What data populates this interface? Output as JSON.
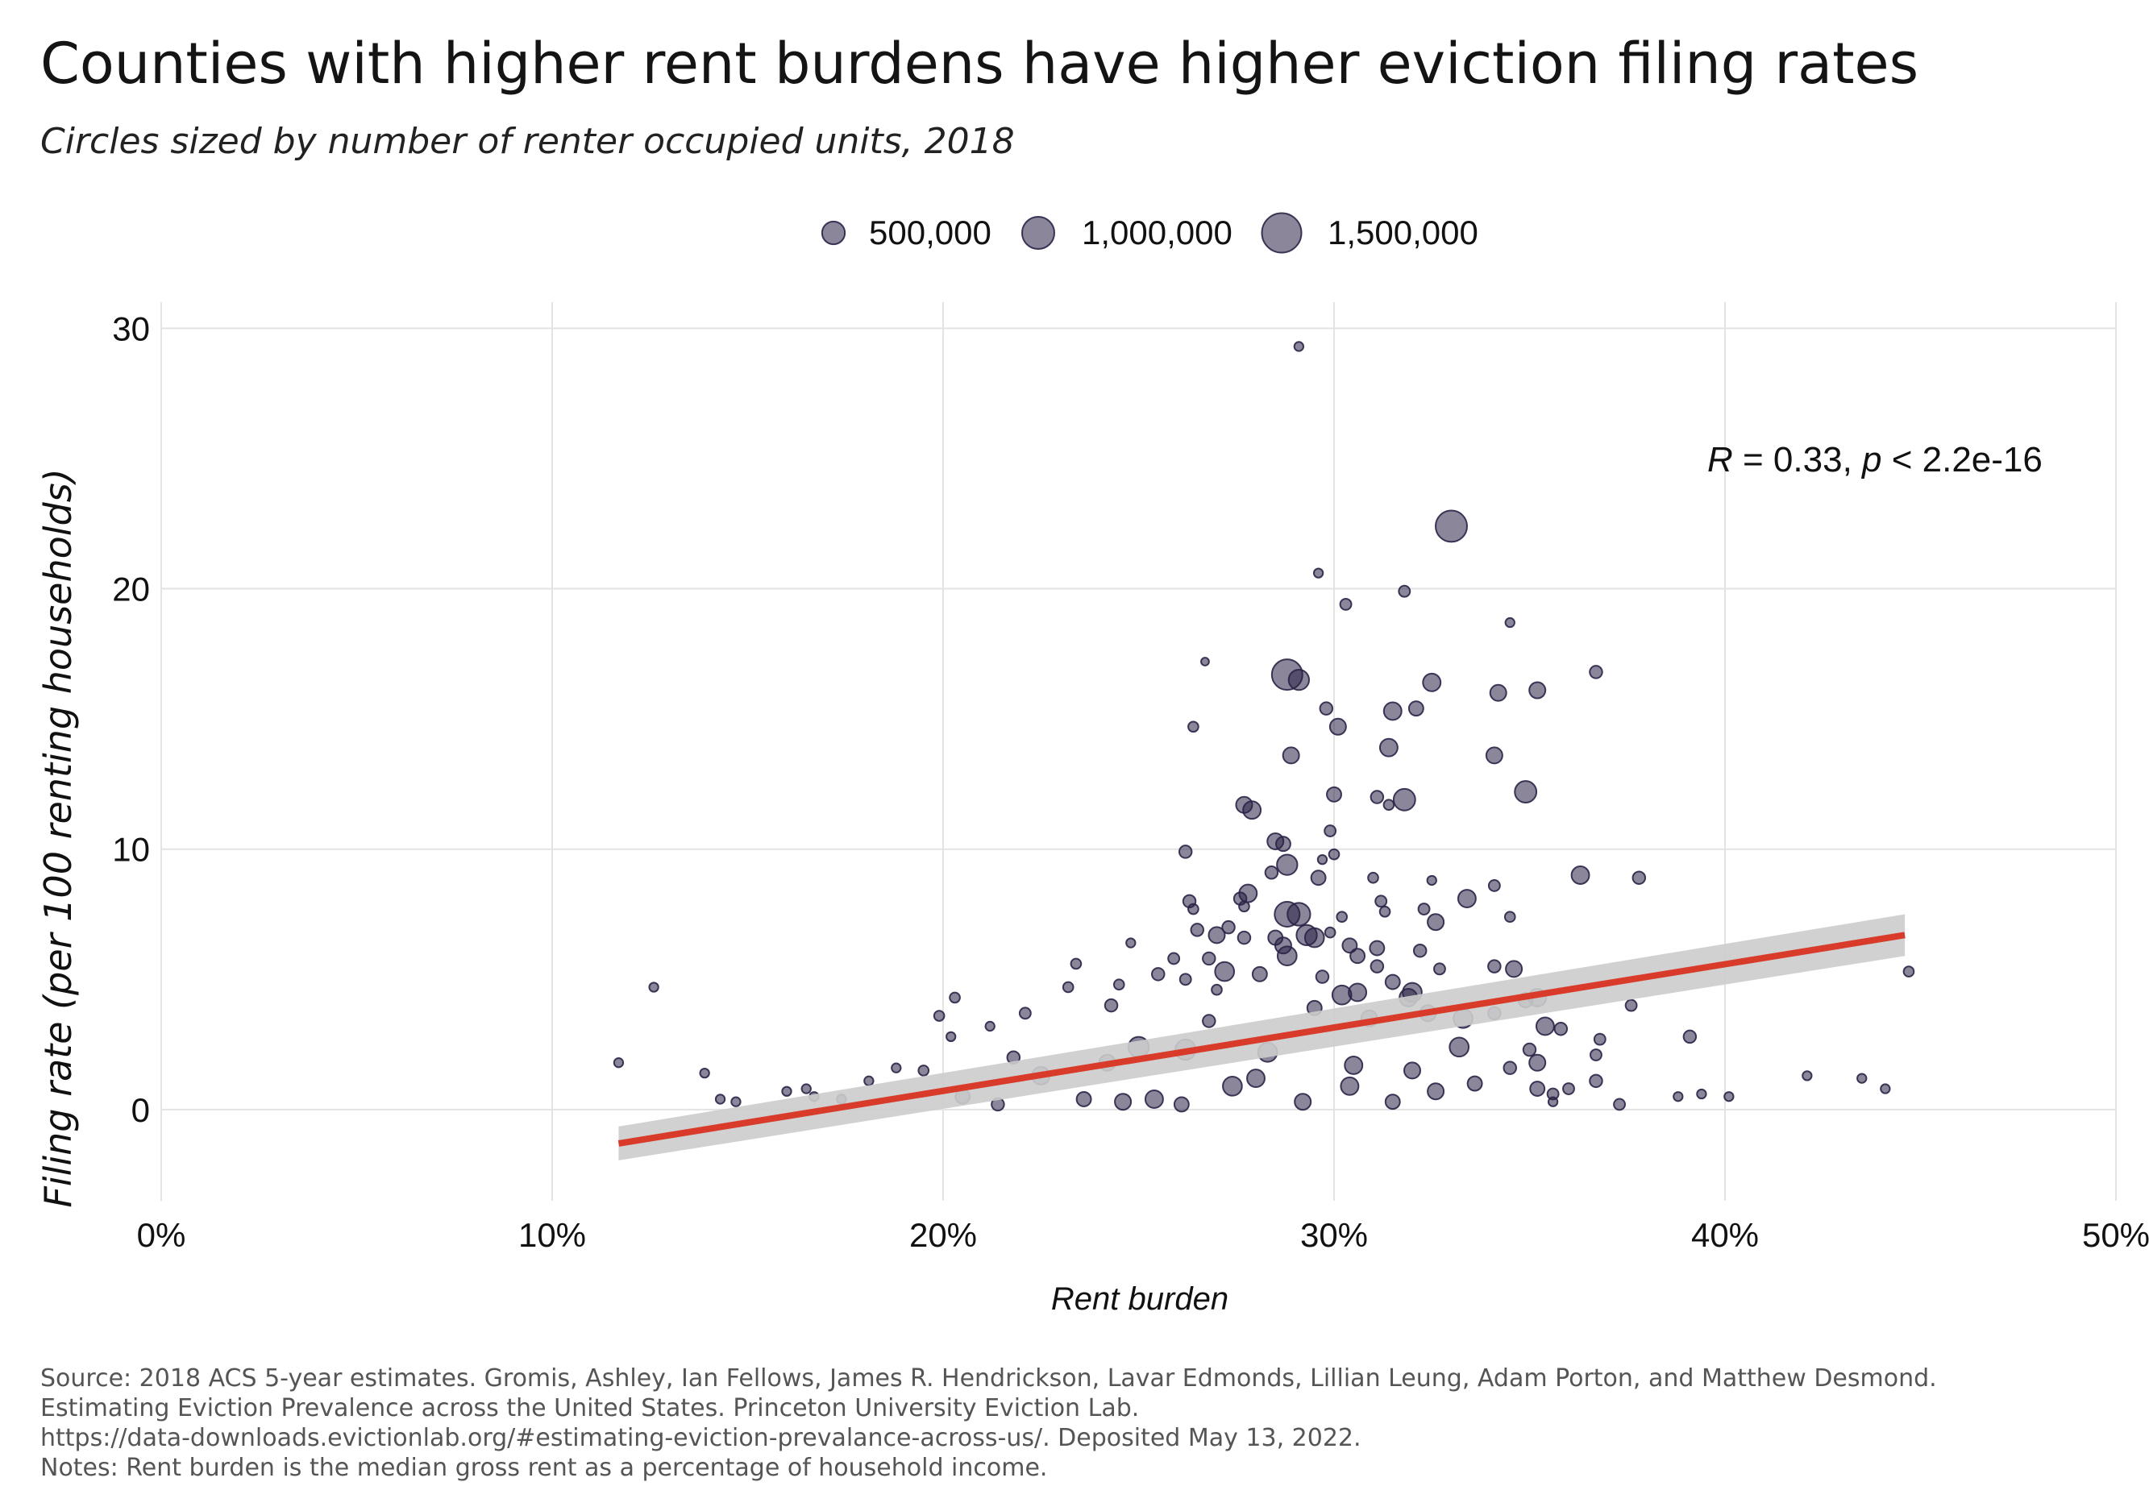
{
  "chart_data": {
    "type": "scatter",
    "title": "Counties with higher rent burdens have higher eviction filing rates",
    "subtitle": "Circles sized by number of renter occupied units, 2018",
    "xlabel": "Rent burden",
    "ylabel": "Filing rate (per 100 renting households)",
    "xlim": [
      0,
      0.5
    ],
    "ylim": [
      -3.5,
      31
    ],
    "xticks": [
      0,
      0.1,
      0.2,
      0.3,
      0.4,
      0.5
    ],
    "xtick_labels": [
      "0%",
      "10%",
      "20%",
      "30%",
      "40%",
      "50%"
    ],
    "yticks": [
      0,
      10,
      20,
      30
    ],
    "ytick_labels": [
      "0",
      "10",
      "20",
      "30"
    ],
    "grid": true,
    "legend": {
      "position": "top",
      "entries": [
        {
          "label": "500,000",
          "size": 500000
        },
        {
          "label": "1,000,000",
          "size": 1000000
        },
        {
          "label": "1,500,000",
          "size": 1500000
        }
      ]
    },
    "annotation": {
      "r_label": "R",
      "r_value": " = 0.33, ",
      "p_label": "p",
      "p_value": " < 2.2e-16"
    },
    "regression": {
      "x": [
        0.117,
        0.446
      ],
      "y": [
        -1.3,
        6.7
      ],
      "ci_halfwidth": [
        0.65,
        0.8
      ]
    },
    "colors": {
      "points": "#2b2347",
      "regression": "#d93b2b",
      "ci": "#cccccc",
      "grid": "#e3e3e3"
    },
    "points": [
      {
        "x": 0.291,
        "y": 29.3,
        "size": 80000
      },
      {
        "x": 0.33,
        "y": 22.4,
        "size": 950000
      },
      {
        "x": 0.296,
        "y": 20.6,
        "size": 80000
      },
      {
        "x": 0.318,
        "y": 19.9,
        "size": 120000
      },
      {
        "x": 0.303,
        "y": 19.4,
        "size": 120000
      },
      {
        "x": 0.345,
        "y": 18.7,
        "size": 80000
      },
      {
        "x": 0.267,
        "y": 17.2,
        "size": 60000
      },
      {
        "x": 0.288,
        "y": 16.7,
        "size": 900000
      },
      {
        "x": 0.291,
        "y": 16.5,
        "size": 400000
      },
      {
        "x": 0.367,
        "y": 16.8,
        "size": 150000
      },
      {
        "x": 0.325,
        "y": 16.4,
        "size": 300000
      },
      {
        "x": 0.342,
        "y": 16.0,
        "size": 250000
      },
      {
        "x": 0.352,
        "y": 16.1,
        "size": 250000
      },
      {
        "x": 0.298,
        "y": 15.4,
        "size": 150000
      },
      {
        "x": 0.315,
        "y": 15.3,
        "size": 300000
      },
      {
        "x": 0.321,
        "y": 15.4,
        "size": 200000
      },
      {
        "x": 0.301,
        "y": 14.7,
        "size": 250000
      },
      {
        "x": 0.264,
        "y": 14.7,
        "size": 100000
      },
      {
        "x": 0.314,
        "y": 13.9,
        "size": 300000
      },
      {
        "x": 0.289,
        "y": 13.6,
        "size": 250000
      },
      {
        "x": 0.341,
        "y": 13.6,
        "size": 250000
      },
      {
        "x": 0.349,
        "y": 12.2,
        "size": 450000
      },
      {
        "x": 0.3,
        "y": 12.1,
        "size": 200000
      },
      {
        "x": 0.311,
        "y": 12.0,
        "size": 150000
      },
      {
        "x": 0.318,
        "y": 11.9,
        "size": 450000
      },
      {
        "x": 0.314,
        "y": 11.7,
        "size": 100000
      },
      {
        "x": 0.277,
        "y": 11.7,
        "size": 250000
      },
      {
        "x": 0.279,
        "y": 11.5,
        "size": 300000
      },
      {
        "x": 0.299,
        "y": 10.7,
        "size": 120000
      },
      {
        "x": 0.285,
        "y": 10.3,
        "size": 250000
      },
      {
        "x": 0.287,
        "y": 10.2,
        "size": 200000
      },
      {
        "x": 0.3,
        "y": 9.8,
        "size": 100000
      },
      {
        "x": 0.262,
        "y": 9.9,
        "size": 150000
      },
      {
        "x": 0.297,
        "y": 9.6,
        "size": 80000
      },
      {
        "x": 0.288,
        "y": 9.4,
        "size": 400000
      },
      {
        "x": 0.284,
        "y": 9.1,
        "size": 150000
      },
      {
        "x": 0.296,
        "y": 8.9,
        "size": 200000
      },
      {
        "x": 0.363,
        "y": 9.0,
        "size": 300000
      },
      {
        "x": 0.378,
        "y": 8.9,
        "size": 150000
      },
      {
        "x": 0.31,
        "y": 8.9,
        "size": 100000
      },
      {
        "x": 0.325,
        "y": 8.8,
        "size": 80000
      },
      {
        "x": 0.341,
        "y": 8.6,
        "size": 120000
      },
      {
        "x": 0.278,
        "y": 8.3,
        "size": 300000
      },
      {
        "x": 0.276,
        "y": 8.1,
        "size": 150000
      },
      {
        "x": 0.334,
        "y": 8.1,
        "size": 300000
      },
      {
        "x": 0.263,
        "y": 8.0,
        "size": 150000
      },
      {
        "x": 0.312,
        "y": 8.0,
        "size": 120000
      },
      {
        "x": 0.288,
        "y": 7.5,
        "size": 600000
      },
      {
        "x": 0.291,
        "y": 7.5,
        "size": 500000
      },
      {
        "x": 0.277,
        "y": 7.8,
        "size": 100000
      },
      {
        "x": 0.264,
        "y": 7.7,
        "size": 100000
      },
      {
        "x": 0.323,
        "y": 7.7,
        "size": 120000
      },
      {
        "x": 0.313,
        "y": 7.6,
        "size": 100000
      },
      {
        "x": 0.302,
        "y": 7.4,
        "size": 100000
      },
      {
        "x": 0.345,
        "y": 7.4,
        "size": 100000
      },
      {
        "x": 0.273,
        "y": 7.0,
        "size": 150000
      },
      {
        "x": 0.326,
        "y": 7.2,
        "size": 250000
      },
      {
        "x": 0.265,
        "y": 6.9,
        "size": 150000
      },
      {
        "x": 0.293,
        "y": 6.7,
        "size": 400000
      },
      {
        "x": 0.295,
        "y": 6.6,
        "size": 350000
      },
      {
        "x": 0.285,
        "y": 6.6,
        "size": 200000
      },
      {
        "x": 0.299,
        "y": 6.8,
        "size": 100000
      },
      {
        "x": 0.27,
        "y": 6.7,
        "size": 250000
      },
      {
        "x": 0.277,
        "y": 6.6,
        "size": 150000
      },
      {
        "x": 0.248,
        "y": 6.4,
        "size": 80000
      },
      {
        "x": 0.287,
        "y": 6.3,
        "size": 250000
      },
      {
        "x": 0.304,
        "y": 6.3,
        "size": 200000
      },
      {
        "x": 0.311,
        "y": 6.2,
        "size": 200000
      },
      {
        "x": 0.322,
        "y": 6.1,
        "size": 150000
      },
      {
        "x": 0.288,
        "y": 5.9,
        "size": 350000
      },
      {
        "x": 0.306,
        "y": 5.9,
        "size": 200000
      },
      {
        "x": 0.268,
        "y": 5.8,
        "size": 150000
      },
      {
        "x": 0.259,
        "y": 5.8,
        "size": 120000
      },
      {
        "x": 0.234,
        "y": 5.6,
        "size": 100000
      },
      {
        "x": 0.311,
        "y": 5.5,
        "size": 150000
      },
      {
        "x": 0.327,
        "y": 5.4,
        "size": 120000
      },
      {
        "x": 0.341,
        "y": 5.5,
        "size": 150000
      },
      {
        "x": 0.346,
        "y": 5.4,
        "size": 250000
      },
      {
        "x": 0.447,
        "y": 5.3,
        "size": 100000
      },
      {
        "x": 0.272,
        "y": 5.3,
        "size": 350000
      },
      {
        "x": 0.281,
        "y": 5.2,
        "size": 200000
      },
      {
        "x": 0.255,
        "y": 5.2,
        "size": 150000
      },
      {
        "x": 0.262,
        "y": 5.0,
        "size": 120000
      },
      {
        "x": 0.297,
        "y": 5.1,
        "size": 150000
      },
      {
        "x": 0.315,
        "y": 4.9,
        "size": 200000
      },
      {
        "x": 0.245,
        "y": 4.8,
        "size": 100000
      },
      {
        "x": 0.232,
        "y": 4.7,
        "size": 100000
      },
      {
        "x": 0.126,
        "y": 4.7,
        "size": 80000
      },
      {
        "x": 0.27,
        "y": 4.6,
        "size": 100000
      },
      {
        "x": 0.306,
        "y": 4.5,
        "size": 300000
      },
      {
        "x": 0.302,
        "y": 4.4,
        "size": 350000
      },
      {
        "x": 0.32,
        "y": 4.5,
        "size": 350000
      },
      {
        "x": 0.319,
        "y": 4.3,
        "size": 300000
      },
      {
        "x": 0.352,
        "y": 4.3,
        "size": 300000
      },
      {
        "x": 0.349,
        "y": 4.2,
        "size": 200000
      },
      {
        "x": 0.203,
        "y": 4.3,
        "size": 100000
      },
      {
        "x": 0.243,
        "y": 4.0,
        "size": 150000
      },
      {
        "x": 0.376,
        "y": 4.0,
        "size": 120000
      },
      {
        "x": 0.295,
        "y": 3.9,
        "size": 200000
      },
      {
        "x": 0.324,
        "y": 3.7,
        "size": 250000
      },
      {
        "x": 0.221,
        "y": 3.7,
        "size": 120000
      },
      {
        "x": 0.199,
        "y": 3.6,
        "size": 100000
      },
      {
        "x": 0.341,
        "y": 3.7,
        "size": 150000
      },
      {
        "x": 0.333,
        "y": 3.5,
        "size": 350000
      },
      {
        "x": 0.309,
        "y": 3.5,
        "size": 250000
      },
      {
        "x": 0.268,
        "y": 3.4,
        "size": 150000
      },
      {
        "x": 0.212,
        "y": 3.2,
        "size": 80000
      },
      {
        "x": 0.354,
        "y": 3.2,
        "size": 300000
      },
      {
        "x": 0.358,
        "y": 3.1,
        "size": 150000
      },
      {
        "x": 0.391,
        "y": 2.8,
        "size": 150000
      },
      {
        "x": 0.202,
        "y": 2.8,
        "size": 80000
      },
      {
        "x": 0.368,
        "y": 2.7,
        "size": 120000
      },
      {
        "x": 0.25,
        "y": 2.4,
        "size": 400000
      },
      {
        "x": 0.262,
        "y": 2.3,
        "size": 400000
      },
      {
        "x": 0.283,
        "y": 2.2,
        "size": 350000
      },
      {
        "x": 0.332,
        "y": 2.4,
        "size": 350000
      },
      {
        "x": 0.35,
        "y": 2.3,
        "size": 150000
      },
      {
        "x": 0.367,
        "y": 2.1,
        "size": 120000
      },
      {
        "x": 0.218,
        "y": 2.0,
        "size": 150000
      },
      {
        "x": 0.242,
        "y": 1.8,
        "size": 250000
      },
      {
        "x": 0.188,
        "y": 1.6,
        "size": 80000
      },
      {
        "x": 0.117,
        "y": 1.8,
        "size": 80000
      },
      {
        "x": 0.352,
        "y": 1.8,
        "size": 250000
      },
      {
        "x": 0.305,
        "y": 1.7,
        "size": 300000
      },
      {
        "x": 0.345,
        "y": 1.6,
        "size": 150000
      },
      {
        "x": 0.32,
        "y": 1.5,
        "size": 250000
      },
      {
        "x": 0.195,
        "y": 1.5,
        "size": 100000
      },
      {
        "x": 0.139,
        "y": 1.4,
        "size": 80000
      },
      {
        "x": 0.225,
        "y": 1.3,
        "size": 300000
      },
      {
        "x": 0.28,
        "y": 1.2,
        "size": 300000
      },
      {
        "x": 0.421,
        "y": 1.3,
        "size": 80000
      },
      {
        "x": 0.435,
        "y": 1.2,
        "size": 80000
      },
      {
        "x": 0.181,
        "y": 1.1,
        "size": 80000
      },
      {
        "x": 0.367,
        "y": 1.1,
        "size": 150000
      },
      {
        "x": 0.336,
        "y": 1.0,
        "size": 200000
      },
      {
        "x": 0.274,
        "y": 0.9,
        "size": 350000
      },
      {
        "x": 0.304,
        "y": 0.9,
        "size": 300000
      },
      {
        "x": 0.36,
        "y": 0.8,
        "size": 120000
      },
      {
        "x": 0.441,
        "y": 0.8,
        "size": 80000
      },
      {
        "x": 0.352,
        "y": 0.8,
        "size": 200000
      },
      {
        "x": 0.165,
        "y": 0.8,
        "size": 80000
      },
      {
        "x": 0.326,
        "y": 0.7,
        "size": 250000
      },
      {
        "x": 0.16,
        "y": 0.7,
        "size": 80000
      },
      {
        "x": 0.394,
        "y": 0.6,
        "size": 80000
      },
      {
        "x": 0.356,
        "y": 0.6,
        "size": 120000
      },
      {
        "x": 0.205,
        "y": 0.5,
        "size": 200000
      },
      {
        "x": 0.401,
        "y": 0.5,
        "size": 80000
      },
      {
        "x": 0.167,
        "y": 0.5,
        "size": 80000
      },
      {
        "x": 0.143,
        "y": 0.4,
        "size": 80000
      },
      {
        "x": 0.388,
        "y": 0.5,
        "size": 80000
      },
      {
        "x": 0.254,
        "y": 0.4,
        "size": 300000
      },
      {
        "x": 0.147,
        "y": 0.3,
        "size": 80000
      },
      {
        "x": 0.174,
        "y": 0.4,
        "size": 80000
      },
      {
        "x": 0.236,
        "y": 0.4,
        "size": 200000
      },
      {
        "x": 0.292,
        "y": 0.3,
        "size": 250000
      },
      {
        "x": 0.373,
        "y": 0.2,
        "size": 120000
      },
      {
        "x": 0.356,
        "y": 0.3,
        "size": 80000
      },
      {
        "x": 0.315,
        "y": 0.3,
        "size": 200000
      },
      {
        "x": 0.261,
        "y": 0.2,
        "size": 200000
      },
      {
        "x": 0.214,
        "y": 0.2,
        "size": 150000
      },
      {
        "x": 0.246,
        "y": 0.3,
        "size": 250000
      }
    ]
  },
  "footer": {
    "lines": [
      "Source: 2018 ACS 5-year estimates. Gromis, Ashley, Ian Fellows, James R. Hendrickson, Lavar Edmonds, Lillian Leung, Adam Porton, and Matthew Desmond.",
      "Estimating Eviction Prevalence across the United States. Princeton University Eviction Lab.",
      "https://data-downloads.evictionlab.org/#estimating-eviction-prevalance-across-us/. Deposited May 13, 2022.",
      "Notes: Rent burden is the median gross rent as a percentage of household income."
    ]
  }
}
